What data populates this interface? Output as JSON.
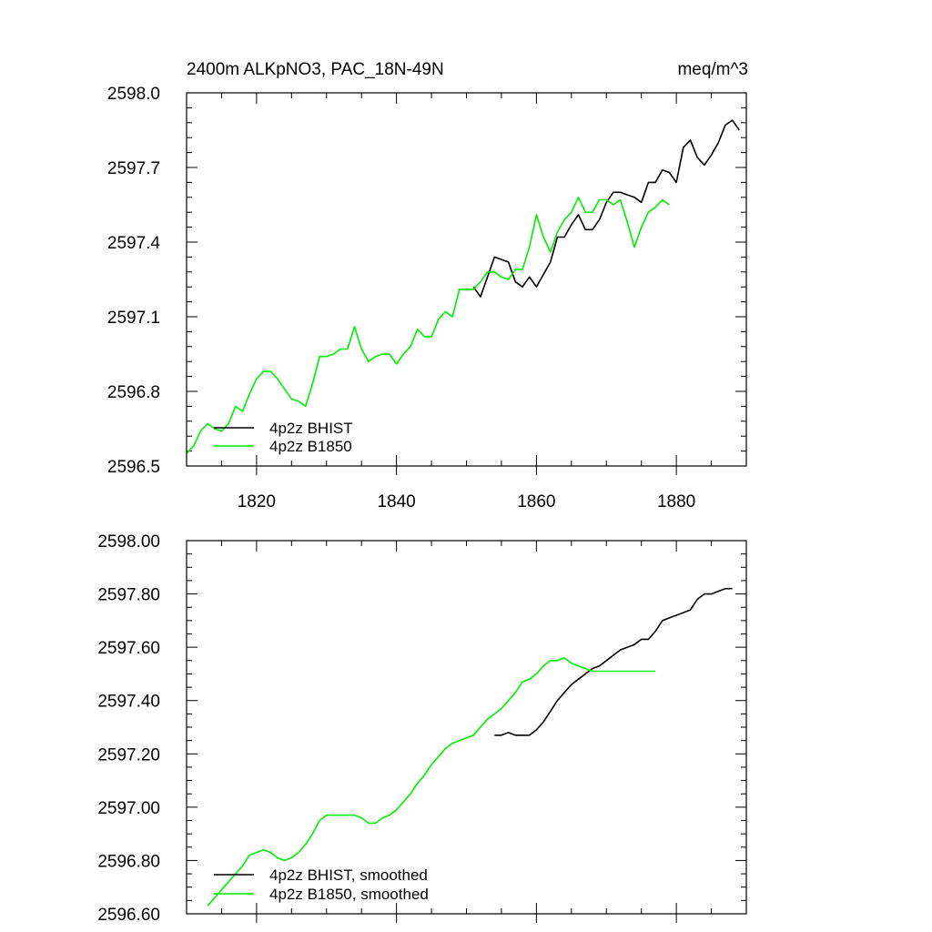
{
  "chart_data": [
    {
      "type": "line",
      "title_left": "2400m ALKpNO3, PAC_18N-49N",
      "title_right": "meq/m^3",
      "xlim": [
        1810,
        1890
      ],
      "ylim": [
        2596.5,
        2598.0
      ],
      "xticks": [
        1820,
        1840,
        1860,
        1880
      ],
      "xtick_labels": [
        "1820",
        "1840",
        "1860",
        "1880"
      ],
      "yticks": [
        2596.5,
        2596.8,
        2597.1,
        2597.4,
        2597.7,
        2598.0
      ],
      "ytick_labels": [
        "2596.5",
        "2596.8",
        "2597.1",
        "2597.4",
        "2597.7",
        "2598.0"
      ],
      "legend_position": "bottom-left",
      "series": [
        {
          "name": "4p2z BHIST",
          "color": "#000000",
          "x": [
            1851,
            1852,
            1853,
            1854,
            1855,
            1856,
            1857,
            1858,
            1859,
            1860,
            1861,
            1862,
            1863,
            1864,
            1865,
            1866,
            1867,
            1868,
            1869,
            1870,
            1871,
            1872,
            1873,
            1874,
            1875,
            1876,
            1877,
            1878,
            1879,
            1880,
            1881,
            1882,
            1883,
            1884,
            1885,
            1886,
            1887,
            1888,
            1889
          ],
          "y": [
            2597.22,
            2597.18,
            2597.26,
            2597.34,
            2597.33,
            2597.32,
            2597.24,
            2597.22,
            2597.26,
            2597.22,
            2597.27,
            2597.32,
            2597.42,
            2597.42,
            2597.47,
            2597.51,
            2597.45,
            2597.45,
            2597.49,
            2597.56,
            2597.6,
            2597.6,
            2597.59,
            2597.58,
            2597.56,
            2597.64,
            2597.64,
            2597.69,
            2597.68,
            2597.64,
            2597.78,
            2597.81,
            2597.74,
            2597.71,
            2597.75,
            2597.8,
            2597.87,
            2597.89,
            2597.85
          ]
        },
        {
          "name": "4p2z B1850",
          "color": "#00ee00",
          "x": [
            1810,
            1811,
            1812,
            1813,
            1814,
            1815,
            1816,
            1817,
            1818,
            1819,
            1820,
            1821,
            1822,
            1823,
            1824,
            1825,
            1826,
            1827,
            1828,
            1829,
            1830,
            1831,
            1832,
            1833,
            1834,
            1835,
            1836,
            1837,
            1838,
            1839,
            1840,
            1841,
            1842,
            1843,
            1844,
            1845,
            1846,
            1847,
            1848,
            1849,
            1850,
            1851,
            1852,
            1853,
            1854,
            1855,
            1856,
            1857,
            1858,
            1859,
            1860,
            1861,
            1862,
            1863,
            1864,
            1865,
            1866,
            1867,
            1868,
            1869,
            1870,
            1871,
            1872,
            1873,
            1874,
            1875,
            1876,
            1877,
            1878,
            1879
          ],
          "y": [
            2596.55,
            2596.58,
            2596.64,
            2596.67,
            2596.65,
            2596.64,
            2596.67,
            2596.74,
            2596.72,
            2596.79,
            2596.85,
            2596.88,
            2596.88,
            2596.85,
            2596.81,
            2596.77,
            2596.76,
            2596.74,
            2596.83,
            2596.94,
            2596.94,
            2596.95,
            2596.97,
            2596.97,
            2597.06,
            2596.97,
            2596.92,
            2596.94,
            2596.95,
            2596.95,
            2596.91,
            2596.95,
            2596.98,
            2597.05,
            2597.02,
            2597.02,
            2597.09,
            2597.12,
            2597.1,
            2597.21,
            2597.21,
            2597.21,
            2597.24,
            2597.28,
            2597.28,
            2597.26,
            2597.25,
            2597.29,
            2597.29,
            2597.38,
            2597.51,
            2597.42,
            2597.36,
            2597.44,
            2597.49,
            2597.52,
            2597.58,
            2597.52,
            2597.52,
            2597.57,
            2597.57,
            2597.55,
            2597.57,
            2597.48,
            2597.38,
            2597.46,
            2597.52,
            2597.54,
            2597.57,
            2597.55
          ]
        }
      ]
    },
    {
      "type": "line",
      "xlim": [
        1810,
        1890
      ],
      "ylim": [
        2596.6,
        2598.0
      ],
      "xticks": [
        1820,
        1840,
        1860,
        1880
      ],
      "yticks": [
        2596.6,
        2596.8,
        2597.0,
        2597.2,
        2597.4,
        2597.6,
        2597.8,
        2598.0
      ],
      "ytick_labels": [
        "2596.60",
        "2596.80",
        "2597.00",
        "2597.20",
        "2597.40",
        "2597.60",
        "2597.80",
        "2598.00"
      ],
      "legend_position": "bottom-left",
      "series": [
        {
          "name": "4p2z BHIST, smoothed",
          "color": "#000000",
          "x": [
            1854,
            1855,
            1856,
            1857,
            1858,
            1859,
            1860,
            1861,
            1862,
            1863,
            1864,
            1865,
            1866,
            1867,
            1868,
            1869,
            1870,
            1871,
            1872,
            1873,
            1874,
            1875,
            1876,
            1877,
            1878,
            1879,
            1880,
            1881,
            1882,
            1883,
            1884,
            1885,
            1886,
            1887,
            1888
          ],
          "y": [
            2597.27,
            2597.27,
            2597.28,
            2597.27,
            2597.27,
            2597.27,
            2597.29,
            2597.32,
            2597.36,
            2597.4,
            2597.43,
            2597.46,
            2597.48,
            2597.5,
            2597.52,
            2597.53,
            2597.55,
            2597.57,
            2597.59,
            2597.6,
            2597.61,
            2597.63,
            2597.63,
            2597.66,
            2597.7,
            2597.71,
            2597.72,
            2597.73,
            2597.74,
            2597.78,
            2597.8,
            2597.8,
            2597.81,
            2597.82,
            2597.82
          ]
        },
        {
          "name": "4p2z B1850, smoothed",
          "color": "#00ee00",
          "x": [
            1813,
            1814,
            1815,
            1816,
            1817,
            1818,
            1819,
            1820,
            1821,
            1822,
            1823,
            1824,
            1825,
            1826,
            1827,
            1828,
            1829,
            1830,
            1831,
            1832,
            1833,
            1834,
            1835,
            1836,
            1837,
            1838,
            1839,
            1840,
            1841,
            1842,
            1843,
            1844,
            1845,
            1846,
            1847,
            1848,
            1849,
            1850,
            1851,
            1852,
            1853,
            1854,
            1855,
            1856,
            1857,
            1858,
            1859,
            1860,
            1861,
            1862,
            1863,
            1864,
            1865,
            1866,
            1867,
            1868,
            1869,
            1870,
            1871,
            1872,
            1873,
            1874,
            1875,
            1876,
            1877
          ],
          "y": [
            2596.63,
            2596.66,
            2596.69,
            2596.72,
            2596.75,
            2596.78,
            2596.82,
            2596.83,
            2596.84,
            2596.83,
            2596.81,
            2596.8,
            2596.81,
            2596.83,
            2596.86,
            2596.9,
            2596.95,
            2596.97,
            2596.97,
            2596.97,
            2596.97,
            2596.97,
            2596.96,
            2596.94,
            2596.94,
            2596.96,
            2596.97,
            2596.99,
            2597.02,
            2597.05,
            2597.09,
            2597.12,
            2597.16,
            2597.19,
            2597.22,
            2597.24,
            2597.25,
            2597.26,
            2597.27,
            2597.3,
            2597.33,
            2597.35,
            2597.37,
            2597.4,
            2597.43,
            2597.47,
            2597.48,
            2597.5,
            2597.53,
            2597.55,
            2597.55,
            2597.56,
            2597.54,
            2597.53,
            2597.52,
            2597.51,
            2597.51,
            2597.51,
            2597.51,
            2597.51,
            2597.51,
            2597.51,
            2597.51,
            2597.51,
            2597.51
          ]
        }
      ]
    }
  ]
}
